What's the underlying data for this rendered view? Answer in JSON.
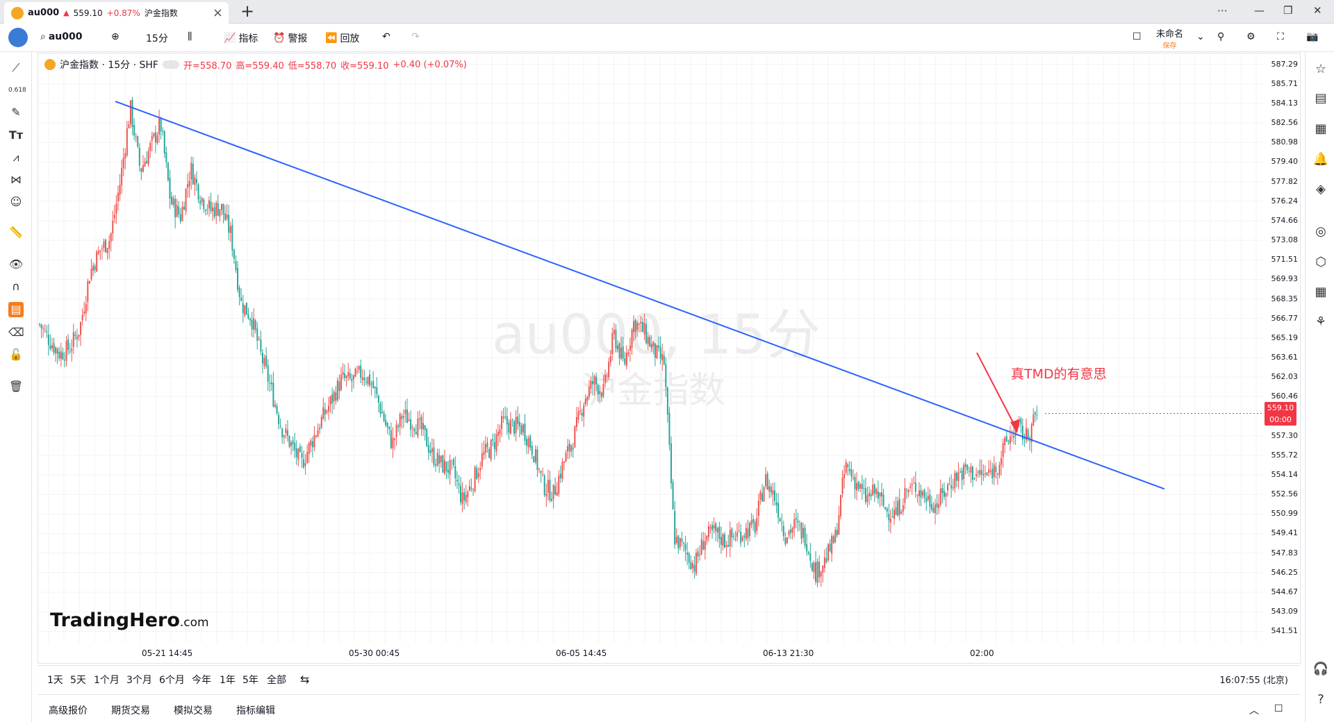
{
  "tab": {
    "symbol": "au000",
    "arrow": "▲",
    "price": "559.10",
    "change_pct": "+0.87%",
    "name": "沪金指数"
  },
  "toolbar": {
    "search_value": "au000",
    "interval": "15分",
    "indicators": "指标",
    "alerts": "警报",
    "replay": "回放",
    "layout_name": "未命名",
    "save_label": "保存"
  },
  "legend": {
    "title": "沪金指数 · 15分 · SHF",
    "open": "开=558.70",
    "high": "高=559.40",
    "low": "低=558.70",
    "close": "收=559.10",
    "change": "+0.40 (+0.07%)"
  },
  "watermark": {
    "line1": "au000, 15分",
    "line2": "沪金指数"
  },
  "brand": {
    "name": "TradingHero",
    "suffix": ".com"
  },
  "annotation": "真TMD的有意思",
  "price_tag": {
    "price": "559.10",
    "countdown": "00:00"
  },
  "chart_data": {
    "type": "candlestick",
    "symbol": "au000",
    "interval": "15分",
    "y_ticks": [
      "587.29",
      "585.71",
      "584.13",
      "582.56",
      "580.98",
      "579.40",
      "577.82",
      "576.24",
      "574.66",
      "573.08",
      "571.51",
      "569.93",
      "568.35",
      "566.77",
      "565.19",
      "563.61",
      "562.03",
      "560.46",
      "557.30",
      "555.72",
      "554.14",
      "552.56",
      "550.99",
      "549.41",
      "547.83",
      "546.25",
      "544.67",
      "543.09",
      "541.51"
    ],
    "ylim": [
      540.8,
      588.0
    ],
    "x_ticks": [
      "05-21 14:45",
      "05-30 00:45",
      "06-05 14:45",
      "06-13 21:30",
      "02:00"
    ],
    "close_series": [
      566.3,
      565.0,
      563.9,
      564.4,
      566.0,
      570.5,
      572.3,
      573.2,
      577.8,
      583.8,
      578.7,
      580.6,
      582.5,
      576.2,
      575.0,
      578.9,
      576.6,
      575.5,
      575.8,
      573.5,
      568.0,
      566.9,
      563.7,
      561.0,
      558.0,
      556.5,
      555.0,
      556.8,
      558.6,
      560.2,
      561.9,
      561.7,
      562.4,
      561.5,
      559.1,
      556.6,
      559.0,
      558.5,
      557.7,
      555.7,
      554.9,
      554.5,
      552.0,
      553.6,
      555.7,
      556.5,
      558.4,
      558.1,
      557.9,
      556.1,
      553.3,
      552.6,
      555.1,
      557.1,
      560.1,
      561.7,
      560.8,
      565.5,
      563.0,
      566.5,
      565.7,
      564.1,
      563.2,
      549.1,
      548.1,
      546.8,
      549.0,
      549.5,
      548.8,
      549.2,
      549.6,
      549.9,
      553.8,
      552.3,
      549.3,
      550.1,
      549.2,
      546.2,
      547.3,
      549.1,
      554.9,
      553.6,
      552.2,
      552.8,
      551.3,
      551.0,
      552.8,
      553.2,
      552.3,
      551.7,
      553.0,
      554.1,
      554.5,
      554.2,
      554.1,
      554.8,
      556.8,
      558.0,
      557.1,
      559.1
    ],
    "trendline": {
      "x": [
        "05-20",
        "06-19 02:00+"
      ],
      "y": [
        584.3,
        553.0
      ]
    },
    "current_price": 559.1
  },
  "range_buttons": [
    "1天",
    "5天",
    "1个月",
    "3个月",
    "6个月",
    "今年",
    "1年",
    "5年",
    "全部"
  ],
  "clock": "16:07:55 (北京)",
  "bottom_tabs": [
    "高级报价",
    "期货交易",
    "模拟交易",
    "指标编辑"
  ]
}
